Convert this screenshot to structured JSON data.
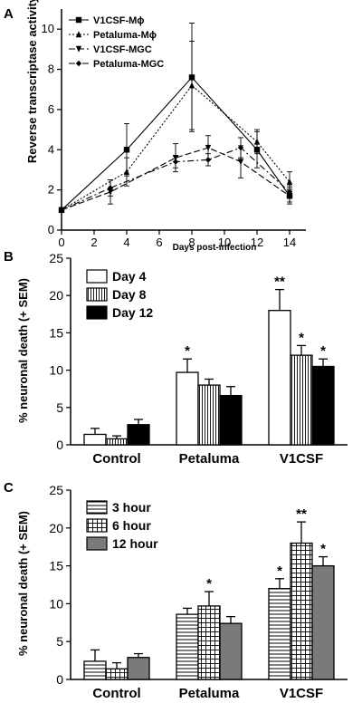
{
  "chart_data": [
    {
      "panel": "A",
      "type": "line",
      "xlabel": "Days post-infection",
      "ylabel": "Reverse transcriptase activity",
      "xlim": [
        0,
        15
      ],
      "ylim": [
        0,
        11
      ],
      "xticks": [
        0,
        2,
        4,
        6,
        8,
        10,
        12,
        14
      ],
      "yticks": [
        0,
        2,
        4,
        6,
        8,
        10
      ],
      "legend_position": "top-left",
      "series": [
        {
          "name": "V1CSF-Mϕ",
          "dash": "",
          "marker": "square",
          "points": [
            [
              0,
              1.0
            ],
            [
              4,
              4.0
            ],
            [
              8,
              7.6
            ],
            [
              12,
              4.0
            ],
            [
              14,
              1.7
            ]
          ],
          "err": [
            0,
            1.3,
            2.7,
            0.9,
            0.4
          ]
        },
        {
          "name": "Petaluma-Mϕ",
          "dash": "2,2",
          "marker": "triangle",
          "points": [
            [
              0,
              1.0
            ],
            [
              4,
              2.9
            ],
            [
              8,
              7.2
            ],
            [
              12,
              4.4
            ],
            [
              14,
              2.4
            ]
          ],
          "err": [
            0,
            0.7,
            2.2,
            0.6,
            0.5
          ]
        },
        {
          "name": "V1CSF-MGC",
          "dash": "7,3",
          "marker": "triangle-down",
          "points": [
            [
              0,
              1.0
            ],
            [
              3,
              1.9
            ],
            [
              7,
              3.6
            ],
            [
              9,
              4.1
            ],
            [
              11,
              3.4
            ],
            [
              14,
              1.7
            ]
          ],
          "err": [
            0,
            0.6,
            0.7,
            0.6,
            0.8,
            0.3
          ]
        },
        {
          "name": "Petaluma-MGC",
          "dash": "7,3,2,3",
          "marker": "diamond",
          "points": [
            [
              0,
              1.0
            ],
            [
              3,
              2.1
            ],
            [
              7,
              3.4
            ],
            [
              9,
              3.5
            ],
            [
              11,
              4.1
            ],
            [
              14,
              1.9
            ]
          ],
          "err": [
            0,
            0.4,
            0.3,
            0.3,
            0.5,
            0.3
          ]
        }
      ]
    },
    {
      "panel": "B",
      "type": "bar",
      "ylabel": "% neuronal death (+ SEM)",
      "ylim": [
        0,
        25
      ],
      "yticks": [
        0,
        5,
        10,
        15,
        20,
        25
      ],
      "categories": [
        "Control",
        "Petaluma",
        "V1CSF"
      ],
      "legend_position": "top-left",
      "series": [
        {
          "name": "Day 4",
          "pattern": "white",
          "values": [
            1.4,
            9.7,
            18.0
          ],
          "err": [
            0.8,
            1.8,
            2.8
          ],
          "stars": [
            "",
            "*",
            "**"
          ]
        },
        {
          "name": "Day 8",
          "pattern": "vlines",
          "values": [
            0.8,
            8.0,
            12.0
          ],
          "err": [
            0.4,
            0.8,
            1.3
          ],
          "stars": [
            "",
            "",
            "*"
          ]
        },
        {
          "name": "Day 12",
          "pattern": "black",
          "values": [
            2.7,
            6.6,
            10.5
          ],
          "err": [
            0.7,
            1.2,
            1.0
          ],
          "stars": [
            "",
            "",
            "*"
          ]
        }
      ]
    },
    {
      "panel": "C",
      "type": "bar",
      "ylabel": "% neuronal death (+ SEM)",
      "ylim": [
        0,
        25
      ],
      "yticks": [
        0,
        5,
        10,
        15,
        20,
        25
      ],
      "categories": [
        "Control",
        "Petaluma",
        "V1CSF"
      ],
      "legend_position": "top-left",
      "series": [
        {
          "name": "3 hour",
          "pattern": "hlines",
          "values": [
            2.4,
            8.6,
            12.0
          ],
          "err": [
            1.5,
            0.8,
            1.3
          ],
          "stars": [
            "",
            "",
            "*"
          ]
        },
        {
          "name": "6 hour",
          "pattern": "grid",
          "values": [
            1.4,
            9.7,
            18.0
          ],
          "err": [
            0.8,
            1.9,
            2.8
          ],
          "stars": [
            "",
            "*",
            "**"
          ]
        },
        {
          "name": "12 hour",
          "pattern": "gray",
          "values": [
            2.9,
            7.4,
            15.0
          ],
          "err": [
            0.5,
            0.9,
            1.2
          ],
          "stars": [
            "",
            "",
            "*"
          ]
        }
      ]
    }
  ]
}
